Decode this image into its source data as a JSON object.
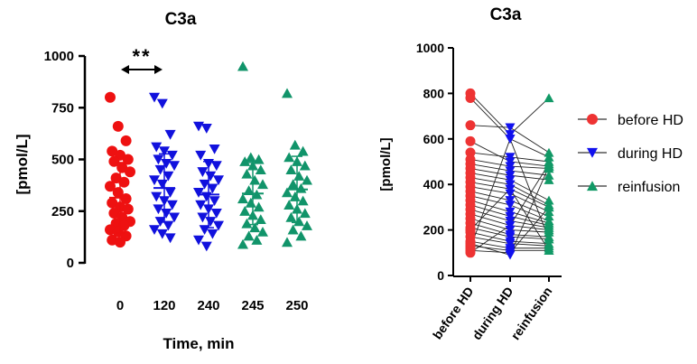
{
  "chart_data": [
    {
      "type": "scatter",
      "title": "C3a",
      "xlabel": "Time, min",
      "ylabel": "[pmol/L]",
      "ylim": [
        0,
        1000
      ],
      "yticks": [
        0,
        250,
        500,
        750,
        1000
      ],
      "categories": [
        "0",
        "120",
        "240",
        "245",
        "250"
      ],
      "colors": [
        "#ee1111",
        "#1111dd",
        "#1111dd",
        "#11946a",
        "#11946a"
      ],
      "markers": [
        "circle",
        "triangle-down",
        "triangle-down",
        "triangle-up",
        "triangle-up"
      ],
      "means": [
        315,
        362,
        330,
        335,
        355
      ],
      "sds": [
        170,
        165,
        160,
        150,
        160
      ],
      "series": [
        {
          "name": "0",
          "values": [
            800,
            660,
            590,
            540,
            520,
            500,
            490,
            460,
            440,
            410,
            390,
            370,
            340,
            310,
            290,
            270,
            260,
            240,
            220,
            200,
            190,
            180,
            160,
            150,
            130,
            110,
            100
          ]
        },
        {
          "name": "120",
          "values": [
            800,
            770,
            620,
            560,
            540,
            520,
            500,
            480,
            470,
            450,
            420,
            400,
            380,
            340,
            320,
            300,
            280,
            260,
            240,
            220,
            200,
            180,
            160,
            140,
            120
          ]
        },
        {
          "name": "240",
          "values": [
            660,
            650,
            550,
            520,
            480,
            470,
            440,
            420,
            400,
            380,
            360,
            340,
            320,
            300,
            280,
            260,
            240,
            220,
            200,
            180,
            160,
            140,
            110,
            80
          ]
        },
        {
          "name": "245",
          "values": [
            950,
            510,
            500,
            490,
            470,
            450,
            430,
            400,
            380,
            350,
            330,
            310,
            290,
            270,
            250,
            230,
            210,
            190,
            170,
            150,
            130,
            110,
            90
          ]
        },
        {
          "name": "250",
          "values": [
            820,
            570,
            540,
            510,
            490,
            470,
            450,
            420,
            400,
            380,
            360,
            340,
            320,
            300,
            280,
            260,
            240,
            220,
            200,
            180,
            160,
            130,
            100
          ]
        }
      ],
      "annotation": {
        "text": "**",
        "between": [
          "0",
          "120"
        ]
      }
    },
    {
      "type": "line",
      "title": "C3a",
      "ylabel": "[pmol/L]",
      "ylim": [
        0,
        1000
      ],
      "yticks": [
        0,
        200,
        400,
        600,
        800,
        1000
      ],
      "categories": [
        "before HD",
        "during HD",
        "reinfusion"
      ],
      "legend": [
        {
          "label": "before HD",
          "marker": "circle",
          "color": "#ee3333"
        },
        {
          "label": "during HD",
          "marker": "triangle-down",
          "color": "#1111ee"
        },
        {
          "label": "reinfusion",
          "marker": "triangle-up",
          "color": "#119966"
        }
      ],
      "paired": [
        [
          800,
          620,
          780
        ],
        [
          780,
          600,
          520
        ],
        [
          660,
          650,
          540
        ],
        [
          590,
          500,
          480
        ],
        [
          540,
          520,
          500
        ],
        [
          510,
          480,
          470
        ],
        [
          490,
          460,
          440
        ],
        [
          470,
          440,
          420
        ],
        [
          450,
          420,
          330
        ],
        [
          430,
          400,
          310
        ],
        [
          410,
          380,
          300
        ],
        [
          390,
          360,
          280
        ],
        [
          370,
          330,
          260
        ],
        [
          350,
          310,
          240
        ],
        [
          330,
          280,
          230
        ],
        [
          310,
          260,
          220
        ],
        [
          290,
          240,
          210
        ],
        [
          270,
          220,
          200
        ],
        [
          250,
          200,
          190
        ],
        [
          230,
          180,
          170
        ],
        [
          210,
          170,
          160
        ],
        [
          190,
          150,
          140
        ],
        [
          170,
          140,
          130
        ],
        [
          150,
          120,
          120
        ],
        [
          130,
          110,
          110
        ],
        [
          110,
          100,
          300
        ],
        [
          100,
          220,
          490
        ],
        [
          120,
          600,
          160
        ],
        [
          140,
          90,
          480
        ],
        [
          200,
          380,
          110
        ]
      ]
    }
  ]
}
